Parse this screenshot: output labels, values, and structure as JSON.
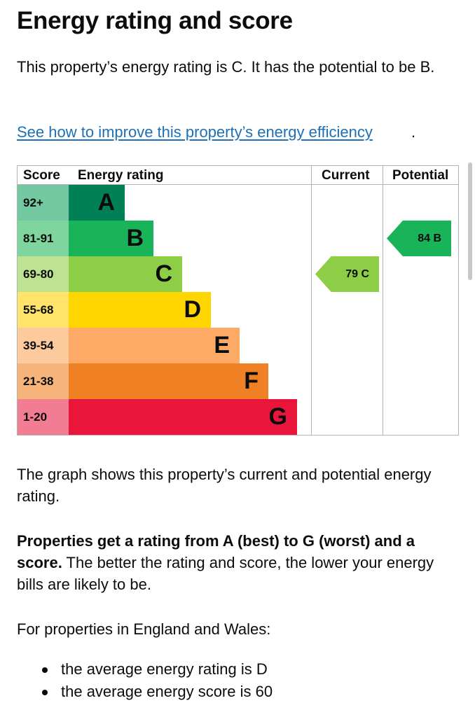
{
  "page": {
    "title": "Energy rating and score",
    "intro": "This property’s energy rating is C. It has the potential to be B.",
    "improve_link": "See how to improve this property’s energy efficiency",
    "improve_link_suffix": "."
  },
  "epc_chart": {
    "headers": {
      "score": "Score",
      "rating": "Energy rating",
      "current": "Current",
      "potential": "Potential"
    },
    "bands": [
      {
        "score": "92+",
        "letter": "A",
        "color": "#008054",
        "score_bg": "#73c8a1"
      },
      {
        "score": "81-91",
        "letter": "B",
        "color": "#19b459",
        "score_bg": "#7fd59e"
      },
      {
        "score": "69-80",
        "letter": "C",
        "color": "#8dce46",
        "score_bg": "#bde292"
      },
      {
        "score": "55-68",
        "letter": "D",
        "color": "#ffd500",
        "score_bg": "#ffe36b"
      },
      {
        "score": "39-54",
        "letter": "E",
        "color": "#fcaa65",
        "score_bg": "#fdca9e"
      },
      {
        "score": "21-38",
        "letter": "F",
        "color": "#ef8023",
        "score_bg": "#f6b47b"
      },
      {
        "score": "1-20",
        "letter": "G",
        "color": "#e9153b",
        "score_bg": "#f27c92"
      }
    ],
    "current": {
      "label": "79 C",
      "score": 79,
      "band": "C",
      "color": "#8dce46"
    },
    "potential": {
      "label": "84 B",
      "score": 84,
      "band": "B",
      "color": "#19b459"
    }
  },
  "explanation": {
    "graph_text": "The graph shows this property’s current and potential energy rating.",
    "rating_bold": "Properties get a rating from A (best) to G (worst) and a score.",
    "rating_rest": " The better the rating and score, the lower your energy bills are likely to be.",
    "region_text": "For properties in England and Wales:",
    "bullets": [
      "the average energy rating is D",
      "the average energy score is 60"
    ]
  }
}
